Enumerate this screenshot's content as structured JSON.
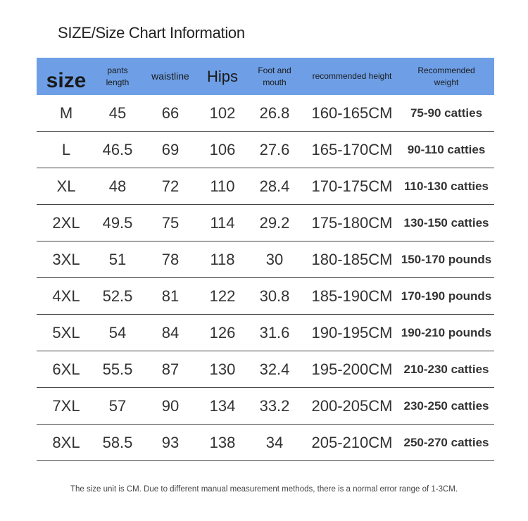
{
  "title": "SIZE/Size Chart Information",
  "table": {
    "header": [
      "size",
      "pants length",
      "waistline",
      "Hips",
      "Foot and mouth",
      "recommended height",
      "Recommended weight"
    ],
    "rows": [
      [
        "M",
        "45",
        "66",
        "102",
        "26.8",
        "160-165CM",
        "75-90 catties"
      ],
      [
        "L",
        "46.5",
        "69",
        "106",
        "27.6",
        "165-170CM",
        "90-110 catties"
      ],
      [
        "XL",
        "48",
        "72",
        "110",
        "28.4",
        "170-175CM",
        "110-130 catties"
      ],
      [
        "2XL",
        "49.5",
        "75",
        "114",
        "29.2",
        "175-180CM",
        "130-150 catties"
      ],
      [
        "3XL",
        "51",
        "78",
        "118",
        "30",
        "180-185CM",
        "150-170 pounds"
      ],
      [
        "4XL",
        "52.5",
        "81",
        "122",
        "30.8",
        "185-190CM",
        "170-190 pounds"
      ],
      [
        "5XL",
        "54",
        "84",
        "126",
        "31.6",
        "190-195CM",
        "190-210 pounds"
      ],
      [
        "6XL",
        "55.5",
        "87",
        "130",
        "32.4",
        "195-200CM",
        "210-230 catties"
      ],
      [
        "7XL",
        "57",
        "90",
        "134",
        "33.2",
        "200-205CM",
        "230-250 catties"
      ],
      [
        "8XL",
        "58.5",
        "93",
        "138",
        "34",
        "205-210CM",
        "250-270 catties"
      ]
    ]
  },
  "note": "The size unit is CM. Due to different manual measurement methods, there is a normal error range of 1-3CM."
}
